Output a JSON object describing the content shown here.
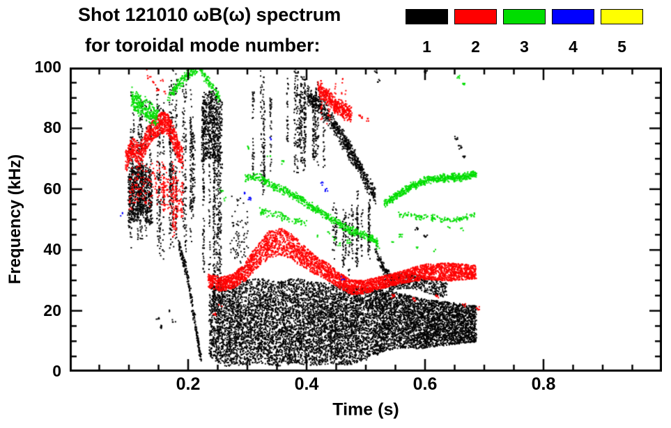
{
  "chart_data": {
    "type": "scatter",
    "subtype": "spectrogram",
    "title_line1": "Shot 121010 ωB(ω) spectrum",
    "title_line2": "for toroidal mode number:",
    "xlabel": "Time (s)",
    "ylabel": "Frequency (kHz)",
    "xlim": [
      0,
      1.0
    ],
    "ylim": [
      0,
      100
    ],
    "xtick_values": [
      0.2,
      0.4,
      0.6,
      0.8
    ],
    "xtick_labels": [
      "0.2",
      "0.4",
      "0.6",
      "0.8"
    ],
    "x_minor_step": 0.05,
    "ytick_values": [
      0,
      20,
      40,
      60,
      80,
      100
    ],
    "ytick_labels": [
      "0",
      "20",
      "40",
      "60",
      "80",
      "100"
    ],
    "y_minor_step": 5,
    "legend": [
      {
        "mode": 1,
        "label": "1",
        "color": "#000000"
      },
      {
        "mode": 2,
        "label": "2",
        "color": "#ff0000"
      },
      {
        "mode": 3,
        "label": "3",
        "color": "#00dd00"
      },
      {
        "mode": 4,
        "label": "4",
        "color": "#0000ff"
      },
      {
        "mode": 5,
        "label": "5",
        "color": "#ffff00"
      }
    ],
    "features": [
      {
        "mode": 1,
        "type": "columns",
        "t": [
          0.096,
          0.215
        ],
        "f": [
          36,
          100
        ],
        "columns": 30,
        "pts": 45,
        "size": 2
      },
      {
        "mode": 1,
        "type": "scatter",
        "dist": "uniform",
        "path": [
          [
            0.098,
            57
          ],
          [
            0.118,
            60
          ],
          [
            0.138,
            57
          ]
        ],
        "spread": 9,
        "pts": 700,
        "size": 2
      },
      {
        "mode": 1,
        "type": "scatter",
        "path": [
          [
            0.183,
            42
          ],
          [
            0.196,
            33
          ],
          [
            0.206,
            22
          ],
          [
            0.214,
            12
          ],
          [
            0.22,
            5
          ]
        ],
        "spread": 2.5,
        "pts": 260,
        "size": 2
      },
      {
        "mode": 1,
        "type": "columns",
        "t": [
          0.224,
          0.255
        ],
        "f": [
          4,
          96
        ],
        "columns": 7,
        "pts": 110,
        "size": 2
      },
      {
        "mode": 1,
        "type": "scatter",
        "dist": "uniform",
        "path": [
          [
            0.222,
            80
          ],
          [
            0.238,
            82
          ],
          [
            0.256,
            78
          ]
        ],
        "spread": 11,
        "pts": 600,
        "size": 2
      },
      {
        "mode": 1,
        "type": "scatter",
        "dist": "uniform",
        "pts": 9000,
        "size": 2,
        "path": [
          [
            0.235,
            17
          ],
          [
            0.26,
            15
          ],
          [
            0.29,
            16
          ],
          [
            0.32,
            17
          ],
          [
            0.35,
            16
          ],
          [
            0.38,
            17
          ],
          [
            0.41,
            16
          ],
          [
            0.44,
            16
          ],
          [
            0.47,
            15
          ],
          [
            0.5,
            16
          ],
          [
            0.53,
            17
          ],
          [
            0.56,
            17
          ],
          [
            0.59,
            16
          ],
          [
            0.62,
            16
          ],
          [
            0.65,
            16
          ],
          [
            0.685,
            16
          ]
        ],
        "hw": [
          [
            0.235,
            12
          ],
          [
            0.26,
            13
          ],
          [
            0.3,
            14
          ],
          [
            0.35,
            14
          ],
          [
            0.4,
            14
          ],
          [
            0.45,
            13
          ],
          [
            0.5,
            12
          ],
          [
            0.53,
            10
          ],
          [
            0.56,
            9
          ],
          [
            0.6,
            8
          ],
          [
            0.64,
            7
          ],
          [
            0.685,
            6
          ]
        ]
      },
      {
        "mode": 1,
        "type": "columns",
        "t": [
          0.24,
          0.53
        ],
        "f": [
          2,
          31
        ],
        "columns": 40,
        "pts": 25,
        "size": 2
      },
      {
        "mode": 1,
        "type": "scatter",
        "path": [
          [
            0.27,
            45
          ],
          [
            0.3,
            45
          ]
        ],
        "spread": 15,
        "pts": 80,
        "size": 2
      },
      {
        "mode": 1,
        "type": "columns",
        "t": [
          0.295,
          0.345
        ],
        "f": [
          55,
          100
        ],
        "columns": 5,
        "pts": 55,
        "size": 2
      },
      {
        "mode": 1,
        "type": "columns",
        "t": [
          0.365,
          0.43
        ],
        "f": [
          60,
          100
        ],
        "columns": 11,
        "pts": 55,
        "size": 2
      },
      {
        "mode": 1,
        "type": "scatter",
        "path": [
          [
            0.4,
            91
          ],
          [
            0.425,
            87
          ],
          [
            0.45,
            80
          ],
          [
            0.475,
            72
          ],
          [
            0.5,
            63
          ],
          [
            0.515,
            58
          ]
        ],
        "spread": 3.5,
        "pts": 700,
        "size": 2
      },
      {
        "mode": 1,
        "type": "columns",
        "t": [
          0.435,
          0.52
        ],
        "f": [
          30,
          62
        ],
        "columns": 12,
        "pts": 30,
        "size": 2
      },
      {
        "mode": 1,
        "type": "scatter",
        "path": [
          [
            0.515,
            40
          ],
          [
            0.53,
            34
          ],
          [
            0.55,
            29
          ]
        ],
        "spread": 2,
        "pts": 120,
        "size": 2
      },
      {
        "mode": 1,
        "type": "scatter",
        "dist": "uniform",
        "path": [
          [
            0.53,
            28
          ],
          [
            0.555,
            30
          ],
          [
            0.58,
            30
          ],
          [
            0.61,
            28
          ],
          [
            0.635,
            27
          ]
        ],
        "spread": 2.5,
        "pts": 420,
        "size": 2
      },
      {
        "mode": 1,
        "type": "dots",
        "size": 2,
        "points": [
          [
            0.6,
            99
          ],
          [
            0.652,
            77
          ],
          [
            0.658,
            74
          ],
          [
            0.664,
            71
          ],
          [
            0.6,
            45
          ],
          [
            0.585,
            47
          ],
          [
            0.515,
            99
          ],
          [
            0.52,
            96
          ],
          [
            0.17,
            20
          ],
          [
            0.175,
            17
          ],
          [
            0.155,
            15
          ],
          [
            0.147,
            18
          ]
        ]
      },
      {
        "mode": 2,
        "type": "scatter",
        "dist": "uniform",
        "path": [
          [
            0.093,
            69
          ],
          [
            0.105,
            74
          ],
          [
            0.117,
            71
          ],
          [
            0.128,
            76
          ],
          [
            0.14,
            80
          ],
          [
            0.152,
            82
          ],
          [
            0.163,
            82
          ],
          [
            0.173,
            78
          ],
          [
            0.182,
            73
          ],
          [
            0.19,
            70
          ]
        ],
        "spread": 3.5,
        "pts": 900,
        "size": 2
      },
      {
        "mode": 2,
        "type": "scatter",
        "path": [
          [
            0.1,
            60
          ],
          [
            0.145,
            63
          ],
          [
            0.19,
            57
          ]
        ],
        "spread": 9,
        "pts": 240,
        "size": 2
      },
      {
        "mode": 2,
        "type": "columns",
        "t": [
          0.158,
          0.192
        ],
        "f": [
          44,
          72
        ],
        "columns": 6,
        "pts": 25,
        "size": 2
      },
      {
        "mode": 2,
        "type": "dots",
        "size": 2,
        "points": [
          [
            0.128,
            100
          ],
          [
            0.133,
            97
          ],
          [
            0.141,
            95
          ],
          [
            0.148,
            93
          ],
          [
            0.154,
            96
          ],
          [
            0.16,
            92
          ]
        ]
      },
      {
        "mode": 2,
        "type": "scatter",
        "dist": "uniform",
        "pts": 3800,
        "size": 2,
        "path": [
          [
            0.233,
            30
          ],
          [
            0.255,
            29
          ],
          [
            0.275,
            30
          ],
          [
            0.295,
            33
          ],
          [
            0.315,
            38
          ],
          [
            0.335,
            42
          ],
          [
            0.355,
            43
          ],
          [
            0.375,
            41
          ],
          [
            0.395,
            38
          ],
          [
            0.415,
            35
          ],
          [
            0.435,
            33
          ],
          [
            0.455,
            30
          ],
          [
            0.475,
            28
          ],
          [
            0.495,
            28
          ],
          [
            0.515,
            29
          ],
          [
            0.535,
            30
          ],
          [
            0.555,
            31
          ],
          [
            0.575,
            32
          ],
          [
            0.6,
            33
          ],
          [
            0.63,
            33
          ],
          [
            0.66,
            33
          ],
          [
            0.685,
            33
          ]
        ],
        "hw": [
          [
            0.233,
            2.2
          ],
          [
            0.28,
            2.5
          ],
          [
            0.31,
            3.5
          ],
          [
            0.335,
            4.5
          ],
          [
            0.36,
            4.5
          ],
          [
            0.385,
            4
          ],
          [
            0.41,
            3.2
          ],
          [
            0.45,
            2.6
          ],
          [
            0.5,
            2.2
          ],
          [
            0.55,
            2.0
          ],
          [
            0.6,
            2.6
          ],
          [
            0.64,
            3.0
          ],
          [
            0.685,
            2.2
          ]
        ]
      },
      {
        "mode": 2,
        "type": "scatter",
        "path": [
          [
            0.418,
            93
          ],
          [
            0.432,
            91
          ],
          [
            0.447,
            88
          ],
          [
            0.462,
            86
          ],
          [
            0.475,
            85
          ]
        ],
        "spread": 3,
        "pts": 380,
        "size": 2
      },
      {
        "mode": 2,
        "type": "columns",
        "t": [
          0.42,
          0.47
        ],
        "f": [
          80,
          97
        ],
        "columns": 6,
        "pts": 18,
        "size": 2
      },
      {
        "mode": 2,
        "type": "dots",
        "size": 2,
        "points": [
          [
            0.545,
            25
          ],
          [
            0.62,
            25
          ],
          [
            0.665,
            22
          ],
          [
            0.688,
            21
          ],
          [
            0.253,
            22
          ],
          [
            0.243,
            19
          ],
          [
            0.49,
            84
          ],
          [
            0.502,
            83
          ],
          [
            0.58,
            24
          ]
        ]
      },
      {
        "mode": 3,
        "type": "scatter",
        "path": [
          [
            0.103,
            90
          ],
          [
            0.125,
            87
          ],
          [
            0.148,
            84
          ]
        ],
        "spread": 4,
        "pts": 280,
        "size": 2
      },
      {
        "mode": 3,
        "type": "scatter",
        "path": [
          [
            0.165,
            90
          ],
          [
            0.18,
            94
          ],
          [
            0.2,
            98
          ],
          [
            0.215,
            100
          ]
        ],
        "spread": 2,
        "pts": 160,
        "size": 2
      },
      {
        "mode": 3,
        "type": "scatter",
        "path": [
          [
            0.218,
            100
          ],
          [
            0.235,
            95
          ],
          [
            0.252,
            90
          ]
        ],
        "spread": 2,
        "pts": 90,
        "size": 2
      },
      {
        "mode": 3,
        "type": "scatter",
        "path": [
          [
            0.295,
            64
          ],
          [
            0.32,
            64
          ],
          [
            0.345,
            61
          ],
          [
            0.37,
            59
          ],
          [
            0.395,
            56
          ],
          [
            0.42,
            53
          ],
          [
            0.445,
            50
          ],
          [
            0.47,
            47
          ],
          [
            0.495,
            45
          ],
          [
            0.52,
            43
          ]
        ],
        "spread": 1.6,
        "pts": 620,
        "size": 2
      },
      {
        "mode": 3,
        "type": "scatter",
        "path": [
          [
            0.32,
            53
          ],
          [
            0.36,
            51
          ],
          [
            0.4,
            49
          ]
        ],
        "spread": 1.5,
        "pts": 90,
        "size": 2
      },
      {
        "mode": 3,
        "type": "scatter",
        "path": [
          [
            0.528,
            55
          ],
          [
            0.55,
            58
          ],
          [
            0.575,
            61
          ],
          [
            0.6,
            63
          ],
          [
            0.63,
            64
          ],
          [
            0.658,
            64
          ],
          [
            0.685,
            65
          ]
        ],
        "spread": 1.6,
        "pts": 620,
        "size": 2
      },
      {
        "mode": 3,
        "type": "scatter",
        "path": [
          [
            0.555,
            52
          ],
          [
            0.6,
            51
          ],
          [
            0.645,
            50
          ],
          [
            0.685,
            52
          ]
        ],
        "spread": 1.2,
        "pts": 140,
        "size": 2
      },
      {
        "mode": 3,
        "type": "dots",
        "size": 2,
        "points": [
          [
            0.445,
            44
          ],
          [
            0.455,
            42
          ],
          [
            0.47,
            43
          ],
          [
            0.52,
            41
          ],
          [
            0.545,
            43
          ],
          [
            0.558,
            45
          ],
          [
            0.585,
            41
          ],
          [
            0.615,
            40
          ],
          [
            0.638,
            48
          ],
          [
            0.662,
            47
          ],
          [
            0.42,
            45
          ],
          [
            0.435,
            46
          ]
        ]
      },
      {
        "mode": 3,
        "type": "dots",
        "size": 2,
        "points": [
          [
            0.655,
            97
          ],
          [
            0.663,
            95
          ],
          [
            0.3,
            74
          ],
          [
            0.335,
            71
          ],
          [
            0.36,
            69
          ],
          [
            0.255,
            60
          ],
          [
            0.26,
            57
          ]
        ]
      },
      {
        "mode": 4,
        "type": "dots",
        "size": 2,
        "points": [
          [
            0.086,
            52
          ],
          [
            0.295,
            59
          ],
          [
            0.302,
            57
          ],
          [
            0.425,
            62
          ],
          [
            0.432,
            60
          ],
          [
            0.46,
            31
          ],
          [
            0.34,
            77
          ]
        ]
      }
    ]
  }
}
